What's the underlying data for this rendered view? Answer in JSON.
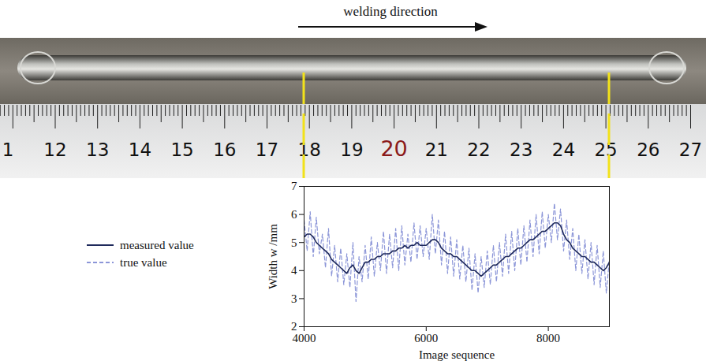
{
  "header": {
    "text": "welding direction"
  },
  "ruler": {
    "labels": [
      "1",
      "12",
      "13",
      "14",
      "15",
      "16",
      "17",
      "18",
      "19",
      "20",
      "21",
      "22",
      "23",
      "24",
      "25",
      "26",
      "27"
    ],
    "highlight": "20",
    "highlight_color": "#8b1a1a"
  },
  "chart_data": {
    "type": "line",
    "xlabel": "Image sequence",
    "ylabel": "Width w /mm",
    "x": [
      4000,
      4050,
      4100,
      4150,
      4200,
      4250,
      4300,
      4350,
      4400,
      4450,
      4500,
      4550,
      4600,
      4650,
      4700,
      4750,
      4800,
      4850,
      4900,
      4950,
      5000,
      5050,
      5100,
      5150,
      5200,
      5250,
      5300,
      5350,
      5400,
      5450,
      5500,
      5550,
      5600,
      5650,
      5700,
      5750,
      5800,
      5850,
      5900,
      5950,
      6000,
      6050,
      6100,
      6150,
      6200,
      6250,
      6300,
      6350,
      6400,
      6450,
      6500,
      6550,
      6600,
      6650,
      6700,
      6750,
      6800,
      6850,
      6900,
      6950,
      7000,
      7050,
      7100,
      7150,
      7200,
      7250,
      7300,
      7350,
      7400,
      7450,
      7500,
      7550,
      7600,
      7650,
      7700,
      7750,
      7800,
      7850,
      7900,
      7950,
      8000,
      8050,
      8100,
      8150,
      8200,
      8250,
      8300,
      8350,
      8400,
      8450,
      8500,
      8550,
      8600,
      8650,
      8700,
      8750,
      8800,
      8850,
      8900,
      8950,
      9000
    ],
    "series": [
      {
        "name": "measured value",
        "color": "#1f2a5c",
        "line_style": "solid",
        "values": [
          5.2,
          5.3,
          5.3,
          5.2,
          5.0,
          4.9,
          4.8,
          4.7,
          4.6,
          4.4,
          4.3,
          4.2,
          4.1,
          4.0,
          3.9,
          4.1,
          4.2,
          4.0,
          3.9,
          4.1,
          4.3,
          4.3,
          4.4,
          4.4,
          4.5,
          4.5,
          4.6,
          4.6,
          4.6,
          4.7,
          4.7,
          4.8,
          4.8,
          4.9,
          4.8,
          4.9,
          4.9,
          5.0,
          4.9,
          4.9,
          4.9,
          5.0,
          5.1,
          5.1,
          5.0,
          4.8,
          4.7,
          4.6,
          4.6,
          4.5,
          4.5,
          4.4,
          4.3,
          4.2,
          4.1,
          4.0,
          4.0,
          3.9,
          3.8,
          3.9,
          4.0,
          4.1,
          4.2,
          4.2,
          4.3,
          4.4,
          4.5,
          4.5,
          4.6,
          4.7,
          4.8,
          4.8,
          4.9,
          5.0,
          5.1,
          5.1,
          5.2,
          5.3,
          5.4,
          5.4,
          5.5,
          5.6,
          5.7,
          5.7,
          5.6,
          5.3,
          5.1,
          5.0,
          4.8,
          4.7,
          4.6,
          4.5,
          4.5,
          4.4,
          4.3,
          4.3,
          4.2,
          4.1,
          4.0,
          4.1,
          4.3
        ]
      },
      {
        "name": "true value",
        "color": "#8c96d8",
        "line_style": "dashed",
        "values": [
          5.8,
          4.7,
          6.1,
          4.5,
          5.9,
          4.6,
          5.3,
          4.1,
          5.5,
          3.8,
          4.9,
          3.6,
          4.8,
          3.5,
          4.6,
          3.4,
          5.0,
          2.9,
          4.5,
          3.6,
          4.9,
          3.7,
          5.2,
          3.8,
          5.0,
          4.0,
          5.4,
          3.9,
          5.3,
          4.1,
          5.5,
          4.0,
          5.6,
          4.2,
          5.3,
          4.3,
          5.7,
          4.4,
          5.6,
          4.5,
          5.5,
          4.4,
          6.0,
          4.6,
          5.8,
          4.2,
          5.4,
          3.9,
          5.2,
          3.8,
          5.1,
          3.7,
          4.9,
          3.6,
          4.8,
          3.3,
          4.6,
          3.2,
          4.5,
          3.4,
          4.7,
          3.5,
          4.9,
          3.6,
          5.0,
          3.8,
          5.3,
          3.9,
          5.4,
          4.0,
          5.5,
          4.2,
          5.6,
          4.3,
          5.8,
          4.5,
          6.0,
          4.6,
          6.1,
          4.8,
          6.0,
          5.0,
          6.4,
          5.1,
          6.2,
          4.7,
          5.8,
          4.4,
          5.5,
          4.0,
          5.3,
          3.9,
          5.1,
          3.7,
          5.0,
          3.5,
          4.9,
          3.4,
          4.7,
          3.2,
          4.4
        ]
      }
    ],
    "xlim": [
      4000,
      9000
    ],
    "xticks": [
      4000,
      6000,
      8000
    ],
    "ylim": [
      2,
      7
    ],
    "yticks": [
      2,
      3,
      4,
      5,
      6,
      7
    ],
    "legend": "left",
    "grid": false
  }
}
